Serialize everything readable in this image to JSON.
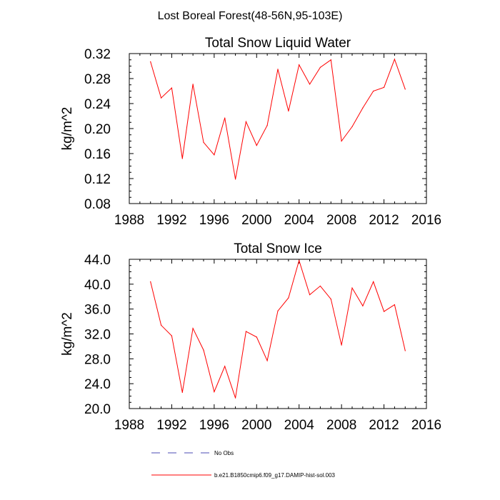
{
  "figure_title": "Lost Boreal Forest(48-56N,95-103E)",
  "legend": {
    "items": [
      {
        "label": "No Obs",
        "color": "#4b4bb4",
        "style": "dashed"
      },
      {
        "label": "b.e21.B1850cmip6.f09_g17.DAMIP-hist-sol.003",
        "color": "#ff0000",
        "style": "solid"
      }
    ]
  },
  "chart_data": [
    {
      "type": "line",
      "title": "Total Snow Liquid Water",
      "xlabel": "",
      "ylabel": "kg/m^2",
      "xlim": [
        1988,
        2016
      ],
      "ylim": [
        0.08,
        0.32
      ],
      "xticks": [
        1988,
        1992,
        1996,
        2000,
        2004,
        2008,
        2012,
        2016
      ],
      "xtick_labels": [
        "1988",
        "1992",
        "1996",
        "2000",
        "2004",
        "2008",
        "2012",
        "2016"
      ],
      "yticks": [
        0.08,
        0.12,
        0.16,
        0.2,
        0.24,
        0.28,
        0.32
      ],
      "ytick_labels": [
        "0.08",
        "0.12",
        "0.16",
        "0.20",
        "0.24",
        "0.28",
        "0.32"
      ],
      "grid": false,
      "series": [
        {
          "color": "#ff0000",
          "x": [
            1990,
            1991,
            1992,
            1993,
            1994,
            1995,
            1996,
            1997,
            1998,
            1999,
            2000,
            2001,
            2002,
            2003,
            2004,
            2005,
            2006,
            2007,
            2008,
            2009,
            2010,
            2011,
            2012,
            2013,
            2014
          ],
          "y": [
            0.307,
            0.249,
            0.265,
            0.152,
            0.271,
            0.178,
            0.158,
            0.217,
            0.119,
            0.211,
            0.173,
            0.205,
            0.295,
            0.228,
            0.302,
            0.271,
            0.298,
            0.31,
            0.18,
            0.203,
            0.233,
            0.26,
            0.266,
            0.311,
            0.263
          ]
        }
      ]
    },
    {
      "type": "line",
      "title": "Total Snow Ice",
      "xlabel": "",
      "ylabel": "kg/m^2",
      "xlim": [
        1988,
        2016
      ],
      "ylim": [
        20.0,
        44.0
      ],
      "xticks": [
        1988,
        1992,
        1996,
        2000,
        2004,
        2008,
        2012,
        2016
      ],
      "xtick_labels": [
        "1988",
        "1992",
        "1996",
        "2000",
        "2004",
        "2008",
        "2012",
        "2016"
      ],
      "yticks": [
        20.0,
        24.0,
        28.0,
        32.0,
        36.0,
        40.0,
        44.0
      ],
      "ytick_labels": [
        "20.0",
        "24.0",
        "28.0",
        "32.0",
        "36.0",
        "40.0",
        "44.0"
      ],
      "grid": false,
      "series": [
        {
          "color": "#ff0000",
          "x": [
            1990,
            1991,
            1992,
            1993,
            1994,
            1995,
            1996,
            1997,
            1998,
            1999,
            2000,
            2001,
            2002,
            2003,
            2004,
            2005,
            2006,
            2007,
            2008,
            2009,
            2010,
            2011,
            2012,
            2013,
            2014
          ],
          "y": [
            40.4,
            33.4,
            31.7,
            22.6,
            32.9,
            29.4,
            22.7,
            26.8,
            21.7,
            32.4,
            31.5,
            27.7,
            35.7,
            37.8,
            43.8,
            38.3,
            39.7,
            37.6,
            30.2,
            39.4,
            36.5,
            40.4,
            35.6,
            36.7,
            29.3
          ]
        }
      ]
    }
  ]
}
